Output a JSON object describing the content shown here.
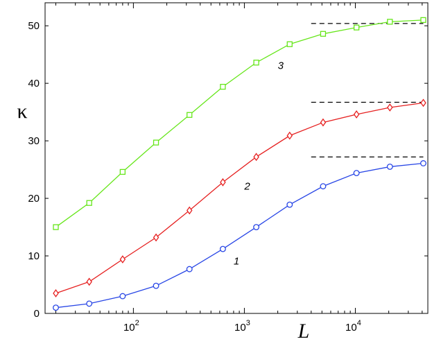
{
  "chart_data": {
    "type": "line",
    "title": "",
    "xlabel": "L",
    "ylabel": "κ",
    "xscale": "log",
    "xlim": [
      16,
      45000
    ],
    "ylim": [
      0,
      54
    ],
    "x_ticks": [
      {
        "value": 100,
        "base": "10",
        "exp": "2"
      },
      {
        "value": 1000,
        "base": "10",
        "exp": "3"
      },
      {
        "value": 10000,
        "base": "10",
        "exp": "4"
      }
    ],
    "y_ticks": [
      0,
      10,
      20,
      30,
      40,
      50
    ],
    "grid": false,
    "legend": "none",
    "series": [
      {
        "color": "#2846e6",
        "marker": "circle",
        "x": [
          20,
          40,
          80,
          160,
          320,
          640,
          1280,
          2560,
          5120,
          10240,
          20480,
          40960
        ],
        "y": [
          1.0,
          1.7,
          3.0,
          4.8,
          7.7,
          11.2,
          15.0,
          18.9,
          22.1,
          24.4,
          25.5,
          26.1
        ]
      },
      {
        "color": "#e62020",
        "marker": "diamond",
        "x": [
          20,
          40,
          80,
          160,
          320,
          640,
          1280,
          2560,
          5120,
          10240,
          20480,
          40960
        ],
        "y": [
          3.5,
          5.5,
          9.4,
          13.2,
          17.9,
          22.8,
          27.2,
          30.9,
          33.2,
          34.6,
          35.8,
          36.6
        ]
      },
      {
        "color": "#66e61a",
        "marker": "square",
        "x": [
          20,
          40,
          80,
          160,
          320,
          640,
          1280,
          2560,
          5120,
          10240,
          20480,
          40960
        ],
        "y": [
          15.0,
          19.2,
          24.6,
          29.7,
          34.5,
          39.4,
          43.6,
          46.8,
          48.6,
          49.7,
          50.7,
          51.0
        ]
      }
    ],
    "annotations": [
      {
        "text": "1",
        "x": 800,
        "y": 8.5
      },
      {
        "text": "2",
        "x": 1000,
        "y": 21.5
      },
      {
        "text": "3",
        "x": 2000,
        "y": 42.5
      }
    ],
    "reference_lines": [
      {
        "y": 27.2,
        "x_from": 4000,
        "x_to": 40960,
        "style": "dashed",
        "color": "#000000"
      },
      {
        "y": 36.7,
        "x_from": 4000,
        "x_to": 40960,
        "style": "dashed",
        "color": "#000000"
      },
      {
        "y": 50.4,
        "x_from": 4000,
        "x_to": 40960,
        "style": "dashed",
        "color": "#000000"
      }
    ]
  }
}
